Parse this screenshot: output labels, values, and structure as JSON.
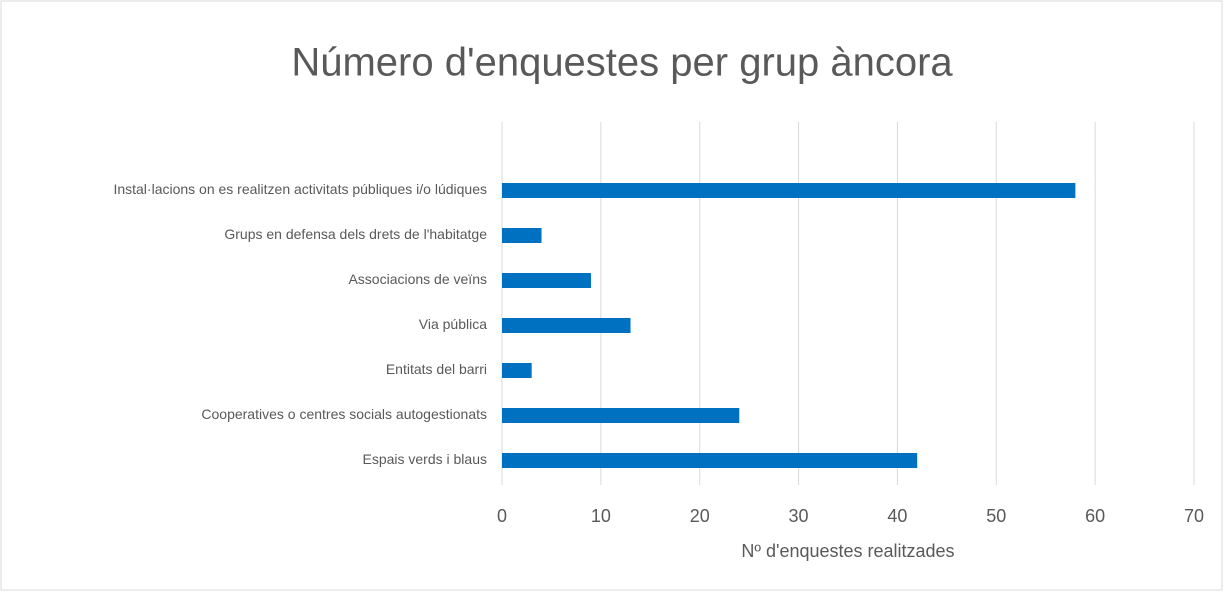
{
  "chart_data": {
    "type": "bar",
    "orientation": "horizontal",
    "title": "Número d'enquestes per grup àncora",
    "x_label": "Nº d'enquestes realitzades",
    "categories": [
      "Instal·lacions on es realitzen activitats públiques i/o lúdiques",
      "Grups en defensa dels drets de l'habitatge",
      "Associacions de veïns",
      "Via pública",
      "Entitats del barri",
      "Cooperatives o centres socials autogestionats",
      "Espais verds i blaus"
    ],
    "values": [
      58,
      4,
      9,
      13,
      3,
      24,
      42
    ],
    "color": "#0070c0",
    "xlim": [
      0,
      70
    ],
    "xticks": [
      0,
      10,
      20,
      30,
      40,
      50,
      60,
      70
    ],
    "grid": true
  }
}
